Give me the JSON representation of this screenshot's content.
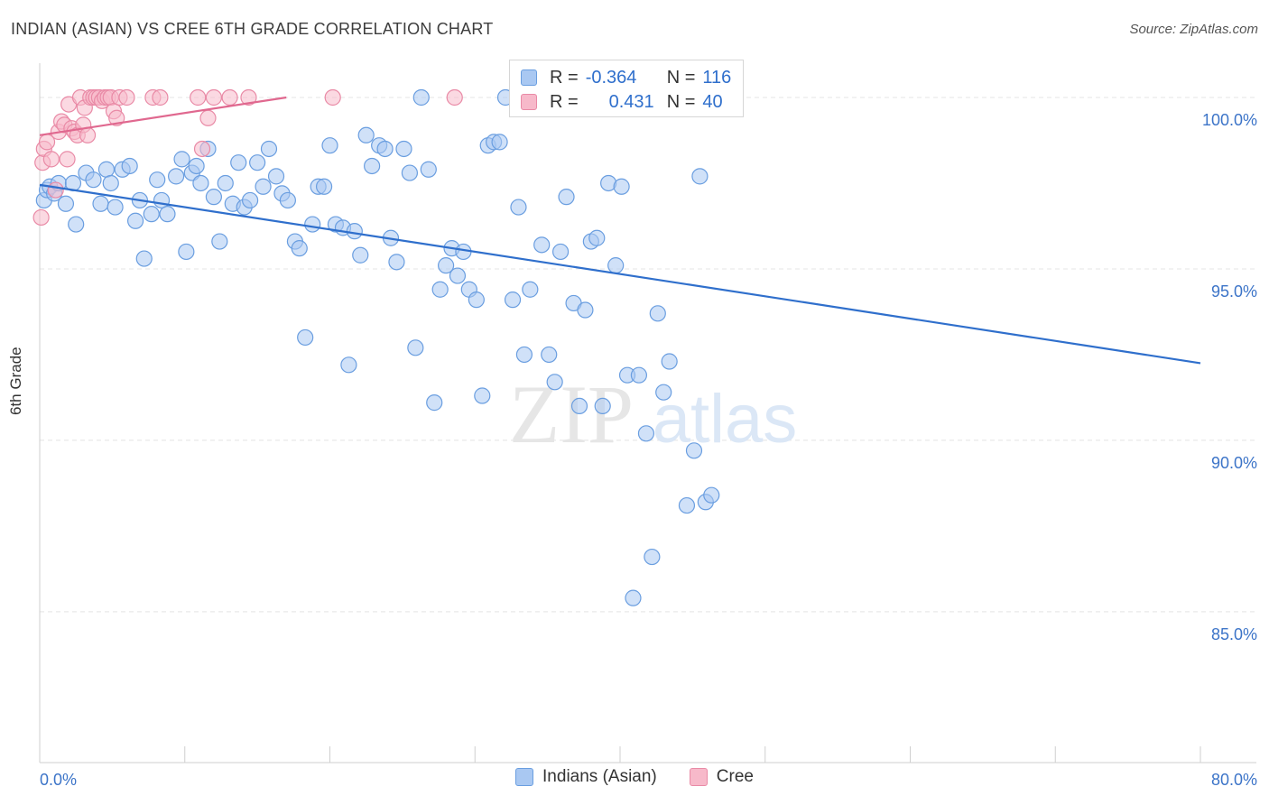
{
  "title": "INDIAN (ASIAN) VS CREE 6TH GRADE CORRELATION CHART",
  "source": "Source: ZipAtlas.com",
  "watermark": {
    "zip": "ZIP",
    "atlas": "atlas"
  },
  "legend_stats": {
    "rows": [
      {
        "r_label": "R =",
        "r_value": "-0.364",
        "n_label": "N =",
        "n_value": "116",
        "color": "#a9c8f2",
        "edge": "#6a9ee0"
      },
      {
        "r_label": "R =",
        "r_value": "0.431",
        "n_label": "N =",
        "n_value": "40",
        "color": "#f7b9ca",
        "edge": "#e98aa6"
      }
    ]
  },
  "bottom_legend": [
    {
      "label": "Indians (Asian)",
      "color": "#a9c8f2",
      "edge": "#6a9ee0"
    },
    {
      "label": "Cree",
      "color": "#f7b9ca",
      "edge": "#e98aa6"
    }
  ],
  "chart_data": {
    "type": "scatter",
    "title": "INDIAN (ASIAN) VS CREE 6TH GRADE CORRELATION CHART",
    "xlabel": "",
    "ylabel": "6th Grade",
    "xlim": [
      0,
      80
    ],
    "ylim": [
      80.6,
      101.0
    ],
    "x_tick_labels": [
      "0.0%",
      "80.0%"
    ],
    "y_ticks": [
      85,
      90,
      95,
      100
    ],
    "y_tick_labels": [
      "85.0%",
      "90.0%",
      "95.0%",
      "100.0%"
    ],
    "grid": true,
    "legend": "bottom",
    "series": [
      {
        "name": "Indians (Asian)",
        "color": "#6a9ee0",
        "fill": "#a9c8f2",
        "trend": {
          "x": [
            0,
            80
          ],
          "y": [
            97.45,
            92.25
          ],
          "color": "#2f6fcc"
        },
        "points": [
          [
            0.3,
            97.0
          ],
          [
            0.5,
            97.3
          ],
          [
            0.7,
            97.4
          ],
          [
            1.0,
            97.2
          ],
          [
            1.3,
            97.5
          ],
          [
            1.8,
            96.9
          ],
          [
            2.3,
            97.5
          ],
          [
            2.5,
            96.3
          ],
          [
            3.2,
            97.8
          ],
          [
            3.7,
            97.6
          ],
          [
            4.2,
            96.9
          ],
          [
            4.6,
            97.9
          ],
          [
            4.9,
            97.5
          ],
          [
            5.2,
            96.8
          ],
          [
            5.7,
            97.9
          ],
          [
            6.2,
            98.0
          ],
          [
            6.6,
            96.4
          ],
          [
            6.9,
            97.0
          ],
          [
            7.2,
            95.3
          ],
          [
            7.7,
            96.6
          ],
          [
            8.1,
            97.6
          ],
          [
            8.4,
            97.0
          ],
          [
            8.8,
            96.6
          ],
          [
            9.4,
            97.7
          ],
          [
            9.8,
            98.2
          ],
          [
            10.1,
            95.5
          ],
          [
            10.5,
            97.8
          ],
          [
            10.8,
            98.0
          ],
          [
            11.1,
            97.5
          ],
          [
            11.6,
            98.5
          ],
          [
            12.0,
            97.1
          ],
          [
            12.4,
            95.8
          ],
          [
            12.8,
            97.5
          ],
          [
            13.3,
            96.9
          ],
          [
            13.7,
            98.1
          ],
          [
            14.1,
            96.8
          ],
          [
            14.5,
            97.0
          ],
          [
            15.0,
            98.1
          ],
          [
            15.4,
            97.4
          ],
          [
            15.8,
            98.5
          ],
          [
            16.3,
            97.7
          ],
          [
            16.7,
            97.2
          ],
          [
            17.1,
            97.0
          ],
          [
            17.6,
            95.8
          ],
          [
            17.9,
            95.6
          ],
          [
            18.3,
            93.0
          ],
          [
            18.8,
            96.3
          ],
          [
            19.2,
            97.4
          ],
          [
            19.6,
            97.4
          ],
          [
            20.0,
            98.6
          ],
          [
            20.4,
            96.3
          ],
          [
            20.9,
            96.2
          ],
          [
            21.3,
            92.2
          ],
          [
            21.7,
            96.1
          ],
          [
            22.1,
            95.4
          ],
          [
            22.5,
            98.9
          ],
          [
            22.9,
            98.0
          ],
          [
            23.4,
            98.6
          ],
          [
            23.8,
            98.5
          ],
          [
            24.2,
            95.9
          ],
          [
            24.6,
            95.2
          ],
          [
            25.1,
            98.5
          ],
          [
            25.5,
            97.8
          ],
          [
            25.9,
            92.7
          ],
          [
            26.3,
            100.0
          ],
          [
            26.8,
            97.9
          ],
          [
            27.2,
            91.1
          ],
          [
            27.6,
            94.4
          ],
          [
            28.0,
            95.1
          ],
          [
            28.4,
            95.6
          ],
          [
            28.8,
            94.8
          ],
          [
            29.2,
            95.5
          ],
          [
            29.6,
            94.4
          ],
          [
            30.1,
            94.1
          ],
          [
            30.5,
            91.3
          ],
          [
            30.9,
            98.6
          ],
          [
            31.3,
            98.7
          ],
          [
            31.7,
            98.7
          ],
          [
            32.1,
            100.0
          ],
          [
            32.6,
            94.1
          ],
          [
            33.0,
            96.8
          ],
          [
            33.4,
            92.5
          ],
          [
            33.8,
            94.4
          ],
          [
            34.2,
            100.0
          ],
          [
            34.6,
            95.7
          ],
          [
            35.1,
            92.5
          ],
          [
            35.5,
            91.7
          ],
          [
            35.9,
            95.5
          ],
          [
            36.3,
            97.1
          ],
          [
            36.8,
            94.0
          ],
          [
            37.2,
            91.0
          ],
          [
            37.6,
            93.8
          ],
          [
            38.0,
            95.8
          ],
          [
            38.4,
            95.9
          ],
          [
            38.8,
            91.0
          ],
          [
            39.2,
            97.5
          ],
          [
            39.7,
            95.1
          ],
          [
            40.1,
            97.4
          ],
          [
            40.5,
            91.9
          ],
          [
            40.9,
            85.4
          ],
          [
            41.3,
            91.9
          ],
          [
            41.8,
            90.2
          ],
          [
            42.2,
            86.6
          ],
          [
            42.6,
            93.7
          ],
          [
            43.0,
            91.4
          ],
          [
            43.4,
            92.3
          ],
          [
            43.8,
            100.0
          ],
          [
            44.2,
            100.0
          ],
          [
            44.6,
            88.1
          ],
          [
            45.1,
            89.7
          ],
          [
            45.5,
            97.7
          ],
          [
            45.9,
            88.2
          ],
          [
            46.3,
            88.4
          ],
          [
            46.7,
            100.0
          ],
          [
            47.1,
            100.0
          ],
          [
            47.5,
            100.0
          ]
        ]
      },
      {
        "name": "Cree",
        "color": "#e98aa6",
        "fill": "#f7b9ca",
        "trend": {
          "x": [
            0,
            17
          ],
          "y": [
            98.9,
            100.0
          ],
          "color": "#e0688f"
        },
        "points": [
          [
            0.1,
            96.5
          ],
          [
            0.2,
            98.1
          ],
          [
            0.3,
            98.5
          ],
          [
            0.5,
            98.7
          ],
          [
            0.8,
            98.2
          ],
          [
            1.1,
            97.3
          ],
          [
            1.3,
            99.0
          ],
          [
            1.5,
            99.3
          ],
          [
            1.7,
            99.2
          ],
          [
            1.9,
            98.2
          ],
          [
            2.0,
            99.8
          ],
          [
            2.2,
            99.1
          ],
          [
            2.4,
            99.0
          ],
          [
            2.6,
            98.9
          ],
          [
            2.8,
            100.0
          ],
          [
            3.0,
            99.2
          ],
          [
            3.1,
            99.7
          ],
          [
            3.3,
            98.9
          ],
          [
            3.5,
            100.0
          ],
          [
            3.7,
            100.0
          ],
          [
            3.9,
            100.0
          ],
          [
            4.1,
            100.0
          ],
          [
            4.3,
            99.9
          ],
          [
            4.5,
            100.0
          ],
          [
            4.7,
            100.0
          ],
          [
            4.9,
            100.0
          ],
          [
            5.1,
            99.6
          ],
          [
            5.3,
            99.4
          ],
          [
            5.5,
            100.0
          ],
          [
            6.0,
            100.0
          ],
          [
            7.8,
            100.0
          ],
          [
            8.3,
            100.0
          ],
          [
            10.9,
            100.0
          ],
          [
            11.2,
            98.5
          ],
          [
            11.6,
            99.4
          ],
          [
            12.0,
            100.0
          ],
          [
            13.1,
            100.0
          ],
          [
            14.4,
            100.0
          ],
          [
            20.2,
            100.0
          ],
          [
            28.6,
            100.0
          ]
        ]
      }
    ]
  }
}
